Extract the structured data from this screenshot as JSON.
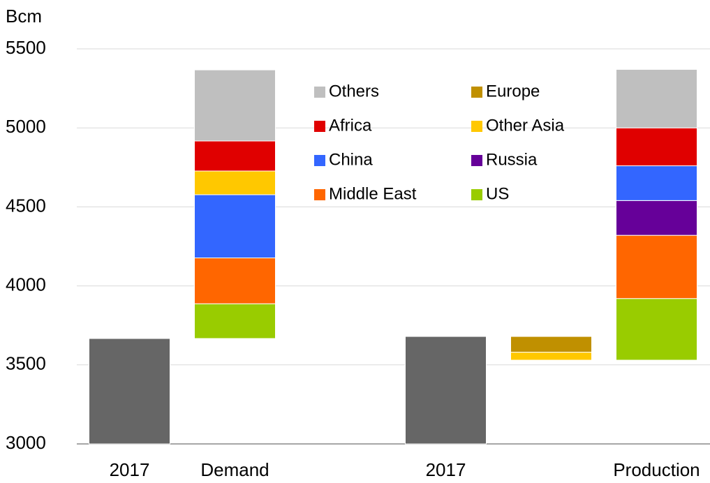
{
  "chart_data": {
    "type": "waterfall",
    "y_label": "Bcm",
    "categories": [
      "2017",
      "Demand",
      null,
      "2017",
      null,
      "Production"
    ],
    "totals": [
      3667,
      null,
      null,
      3680,
      null,
      null
    ],
    "totals_color": "#666666",
    "series": [
      {
        "name": "Others",
        "color": "#bfbfbf",
        "values": [
          null,
          450,
          null,
          null,
          null,
          370
        ]
      },
      {
        "name": "Europe",
        "color": "#c09000",
        "values": [
          null,
          null,
          null,
          null,
          -100,
          null
        ]
      },
      {
        "name": "Africa",
        "color": "#e00000",
        "values": [
          null,
          190,
          null,
          null,
          null,
          240
        ]
      },
      {
        "name": "Other Asia",
        "color": "#ffc800",
        "values": [
          null,
          150,
          null,
          null,
          -50,
          null
        ]
      },
      {
        "name": "China",
        "color": "#3366ff",
        "values": [
          null,
          400,
          null,
          null,
          null,
          220
        ]
      },
      {
        "name": "Russia",
        "color": "#660099",
        "values": [
          null,
          null,
          null,
          null,
          null,
          220
        ]
      },
      {
        "name": "Middle East",
        "color": "#ff6600",
        "values": [
          null,
          290,
          null,
          null,
          null,
          400
        ]
      },
      {
        "name": "US",
        "color": "#99cc00",
        "values": [
          null,
          220,
          null,
          null,
          null,
          390
        ]
      }
    ],
    "ylim": [
      3000,
      5500
    ],
    "yticks": [
      3000,
      3500,
      4000,
      4500,
      5000,
      5500
    ],
    "grid": true
  }
}
